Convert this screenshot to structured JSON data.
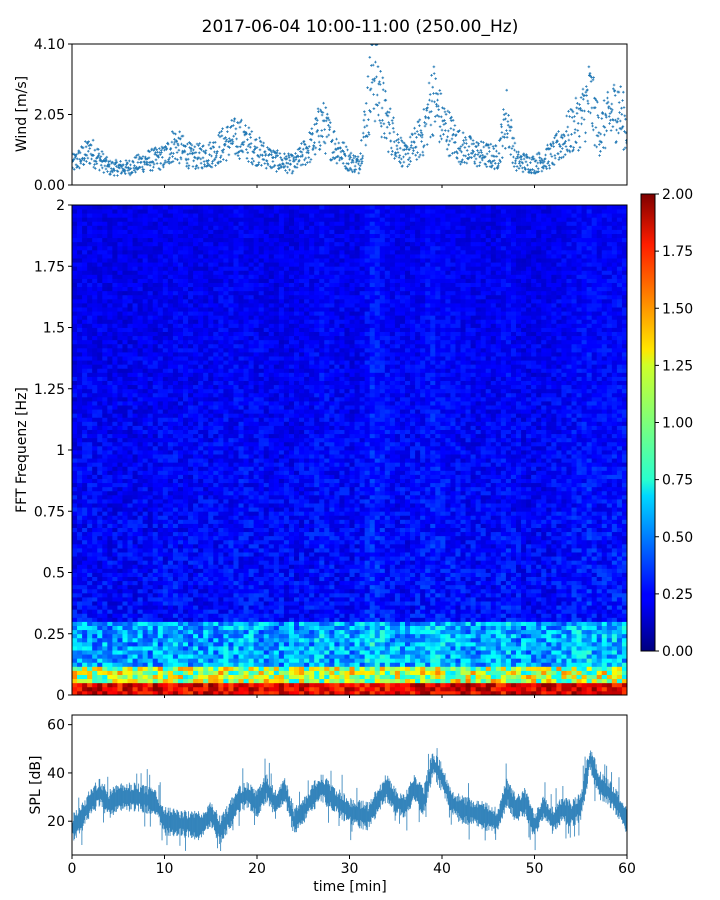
{
  "title": "2017-06-04 10:00-11:00 (250.00_Hz)",
  "chart_data": [
    {
      "type": "scatter",
      "name": "wind",
      "ylabel": "Wind [m/s]",
      "ylim": [
        0,
        4.1
      ],
      "xlim": [
        0,
        60
      ],
      "yticks": [
        "0.00",
        "2.05",
        "4.10"
      ],
      "series": [
        {
          "x": [
            0,
            2,
            4,
            6,
            8,
            10,
            11,
            13,
            15,
            17,
            18,
            20,
            22,
            24,
            26,
            27,
            28,
            30,
            31,
            32,
            32.5,
            33,
            34,
            36,
            38,
            39,
            40,
            42,
            44,
            46,
            47,
            48,
            50,
            52,
            54,
            55,
            56,
            57,
            58,
            59,
            60
          ],
          "y": [
            0.6,
            1.0,
            0.5,
            0.5,
            0.7,
            0.8,
            1.2,
            0.8,
            0.9,
            1.3,
            1.4,
            1.0,
            0.7,
            0.6,
            1.2,
            1.8,
            1.3,
            0.7,
            0.6,
            2.3,
            3.4,
            2.9,
            1.8,
            0.8,
            1.5,
            2.6,
            1.8,
            1.1,
            0.9,
            0.8,
            2.0,
            0.7,
            0.6,
            0.9,
            1.6,
            1.9,
            2.6,
            1.5,
            1.9,
            2.3,
            1.6
          ]
        }
      ]
    },
    {
      "type": "heatmap",
      "name": "spectrogram",
      "ylabel": "FFT Frequenz [Hz]",
      "ylim": [
        0,
        2
      ],
      "xlim": [
        0,
        60
      ],
      "yticks": [
        "0",
        "0.25",
        "0.5",
        "0.75",
        "1",
        "1.25",
        "1.5",
        "1.75",
        "2"
      ],
      "colorbar": {
        "range": [
          0,
          2
        ],
        "ticks": [
          "0.00",
          "0.25",
          "0.50",
          "0.75",
          "1.00",
          "1.25",
          "1.50",
          "1.75",
          "2.00"
        ],
        "colormap": "jet"
      }
    },
    {
      "type": "line",
      "name": "spl",
      "ylabel": "SPL [dB]",
      "xlabel": "time [min]",
      "ylim": [
        6,
        64
      ],
      "xlim": [
        0,
        60
      ],
      "yticks": [
        "20",
        "40",
        "60"
      ],
      "xticks": [
        "0",
        "10",
        "20",
        "30",
        "40",
        "50",
        "60"
      ],
      "series": [
        {
          "x": [
            0,
            1,
            2,
            3,
            4,
            5,
            7,
            9,
            10,
            12,
            14,
            15,
            16,
            17,
            18,
            19,
            20,
            21,
            22,
            23,
            24,
            25,
            26,
            27,
            28,
            29,
            30,
            32,
            34,
            35,
            36,
            37,
            38,
            39,
            40,
            41,
            42,
            44,
            46,
            47,
            48,
            49,
            50,
            51,
            52,
            53,
            54,
            55,
            56,
            57,
            58,
            59,
            60
          ],
          "y": [
            17,
            21,
            28,
            32,
            27,
            30,
            30,
            28,
            20,
            19,
            18,
            23,
            16,
            22,
            29,
            31,
            27,
            34,
            27,
            33,
            20,
            24,
            30,
            34,
            30,
            27,
            24,
            22,
            34,
            28,
            26,
            34,
            28,
            44,
            38,
            28,
            25,
            23,
            20,
            32,
            25,
            28,
            18,
            26,
            20,
            25,
            23,
            26,
            46,
            35,
            32,
            27,
            20
          ]
        }
      ]
    }
  ]
}
